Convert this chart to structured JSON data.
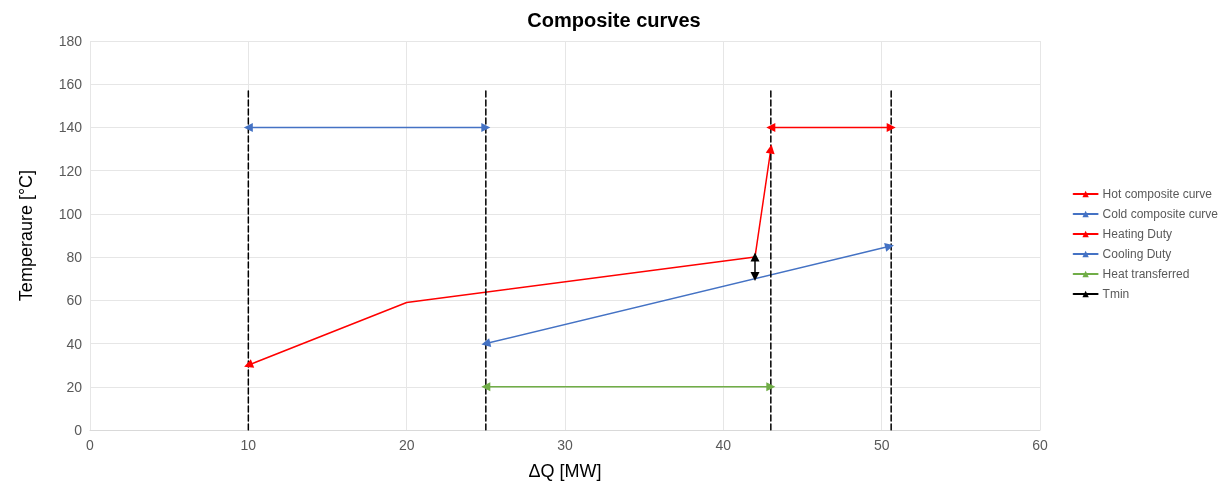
{
  "chart_data": {
    "type": "line",
    "title": "Composite curves",
    "xlabel": "ΔQ [MW]",
    "ylabel": "Temperaure [°C]",
    "xlim": [
      0,
      60
    ],
    "xticks": [
      0,
      10,
      20,
      30,
      40,
      50,
      60
    ],
    "ylim": [
      0,
      180
    ],
    "yticks": [
      0,
      20,
      40,
      60,
      80,
      100,
      120,
      140,
      160,
      180
    ],
    "grid": true,
    "legend": "right",
    "line_style": "solid",
    "series": [
      {
        "name": "Hot composite curve",
        "color": "#ff0000",
        "x": [
          43,
          42,
          20,
          10
        ],
        "values": [
          130,
          80,
          59,
          30
        ],
        "marker": "triangle"
      },
      {
        "name": "Cold composite curve",
        "color": "#4472c4",
        "x": [
          25,
          50.5
        ],
        "values": [
          40,
          85
        ],
        "marker": "triangle"
      },
      {
        "name": "Heating Duty",
        "color": "#ff0000",
        "x": [
          43,
          50.6
        ],
        "values": [
          140,
          140
        ],
        "marker": "triangle"
      },
      {
        "name": "Cooling Duty",
        "color": "#4472c4",
        "x": [
          10,
          25
        ],
        "values": [
          140,
          140
        ],
        "marker": "triangle"
      },
      {
        "name": "Heat transferred",
        "color": "#70ad47",
        "x": [
          25,
          43
        ],
        "values": [
          20,
          20
        ],
        "marker": "triangle"
      },
      {
        "name": "Tmin",
        "color": "#000000",
        "x": [
          42,
          42
        ],
        "values": [
          71,
          80
        ],
        "marker": "triangle"
      },
      {
        "color": "#000000",
        "x": [
          10,
          10
        ],
        "values": [
          0,
          158
        ],
        "marker": "none",
        "line_style": "dashed"
      },
      {
        "color": "#000000",
        "x": [
          25,
          25
        ],
        "values": [
          0,
          158
        ],
        "marker": "none",
        "line_style": "dashed"
      },
      {
        "color": "#000000",
        "x": [
          43,
          43
        ],
        "values": [
          0,
          158
        ],
        "marker": "none",
        "line_style": "dashed"
      },
      {
        "color": "#000000",
        "x": [
          50.6,
          50.6
        ],
        "values": [
          0,
          158
        ],
        "marker": "none",
        "line_style": "dashed"
      }
    ]
  }
}
